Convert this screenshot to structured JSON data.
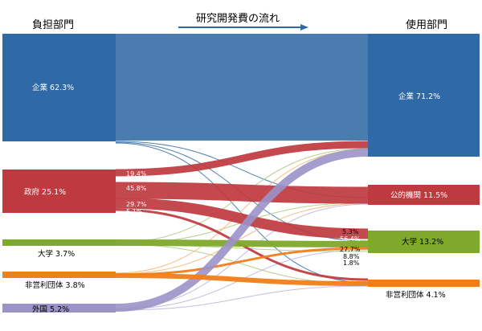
{
  "header": {
    "left_title": "負担部門",
    "center_title": "研究開発費の流れ",
    "right_title": "使用部門"
  },
  "colors": {
    "company": "#2f6aa6",
    "government": "#bf3a3f",
    "university": "#7ea92b",
    "nonprofit": "#f07e1a",
    "foreign": "#9b92c8",
    "big_flow": "#4b7cb0"
  },
  "sources": [
    {
      "id": "company",
      "label": "企業 62.3%",
      "color": "#2f6aa6"
    },
    {
      "id": "government",
      "label": "政府 25.1%",
      "color": "#bf3a3f"
    },
    {
      "id": "university",
      "label": "大学 3.7%",
      "color": "#7ea92b"
    },
    {
      "id": "nonprofit",
      "label": "非営利団体 3.8%",
      "color": "#f07e1a"
    },
    {
      "id": "foreign",
      "label": "外国 5.2%",
      "color": "#9b92c8"
    }
  ],
  "targets": [
    {
      "id": "company",
      "label": "企業 71.2%",
      "color": "#2f6aa6"
    },
    {
      "id": "public",
      "label": "公的機関 11.5%",
      "color": "#bf3a3f"
    },
    {
      "id": "university",
      "label": "大学 13.2%",
      "color": "#7ea92b"
    },
    {
      "id": "nonprofit",
      "label": "非営利団体 4.1%",
      "color": "#f07e1a"
    }
  ],
  "flow_labels": {
    "gov_company": "19.4%",
    "gov_public": "45.8%",
    "gov_university": "29.7%",
    "gov_nonprofit": "5.1%",
    "to_univ_top": "5.3%",
    "to_univ_gov": "56.4%",
    "to_univ_1": "27.7%",
    "to_univ_2": "8.8%",
    "to_univ_3": "1.8%"
  }
}
